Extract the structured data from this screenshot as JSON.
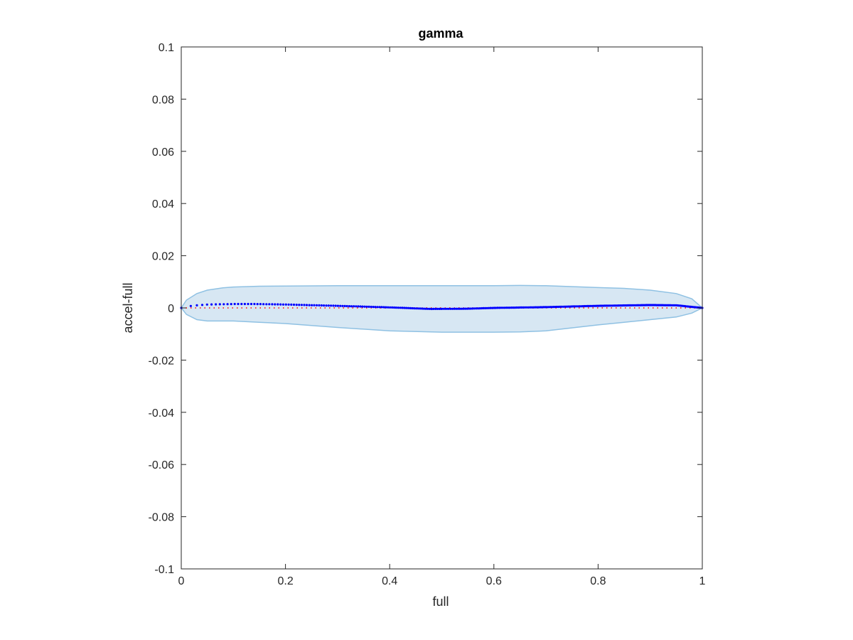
{
  "chart_data": {
    "type": "line",
    "title": "gamma",
    "xlabel": "full",
    "ylabel": "accel-full",
    "xlim": [
      0,
      1
    ],
    "ylim": [
      -0.1,
      0.1
    ],
    "grid": false,
    "x_ticks": [
      0,
      0.2,
      0.4,
      0.6,
      0.8,
      1
    ],
    "x_tick_labels": [
      "0",
      "0.2",
      "0.4",
      "0.6",
      "0.8",
      "1"
    ],
    "y_ticks": [
      -0.1,
      -0.08,
      -0.06,
      -0.04,
      -0.02,
      0,
      0.02,
      0.04,
      0.06,
      0.08,
      0.1
    ],
    "y_tick_labels": [
      "-0.1",
      "-0.08",
      "-0.06",
      "-0.04",
      "-0.02",
      "0",
      "0.02",
      "0.04",
      "0.06",
      "0.08",
      "0.1"
    ],
    "colors": {
      "band_fill": "#d7e7f3",
      "band_edge": "#8fc1e3",
      "mean": "#0000ff",
      "reference": "#ff0000",
      "axes": "#262626"
    },
    "band": {
      "x": [
        0,
        0.01,
        0.03,
        0.05,
        0.08,
        0.1,
        0.15,
        0.2,
        0.3,
        0.4,
        0.5,
        0.6,
        0.65,
        0.7,
        0.8,
        0.85,
        0.9,
        0.95,
        0.98,
        1
      ],
      "upper": [
        0,
        0.003,
        0.0055,
        0.0068,
        0.0077,
        0.008,
        0.0083,
        0.0084,
        0.0085,
        0.0085,
        0.0085,
        0.0085,
        0.0086,
        0.0085,
        0.0078,
        0.0075,
        0.0068,
        0.0055,
        0.0035,
        0
      ],
      "lower": [
        0,
        -0.0025,
        -0.0045,
        -0.005,
        -0.005,
        -0.005,
        -0.0055,
        -0.006,
        -0.0075,
        -0.0088,
        -0.0093,
        -0.0093,
        -0.0092,
        -0.0088,
        -0.0065,
        -0.0055,
        -0.0045,
        -0.0035,
        -0.002,
        0
      ]
    },
    "series": [
      {
        "style": "dotted",
        "x": [
          0,
          0.02,
          0.05,
          0.1,
          0.14,
          0.2,
          0.3,
          0.4,
          0.48,
          0.55,
          0.6,
          0.7,
          0.8,
          0.9,
          0.95,
          1
        ],
        "values": [
          0,
          0.0008,
          0.0013,
          0.0015,
          0.0015,
          0.0013,
          0.0008,
          0.0002,
          -0.0004,
          -0.0003,
          0,
          0.0003,
          0.0008,
          0.0011,
          0.001,
          0
        ]
      },
      {
        "style": "reference",
        "x": [
          0,
          1
        ],
        "values": [
          0,
          0
        ]
      }
    ]
  }
}
